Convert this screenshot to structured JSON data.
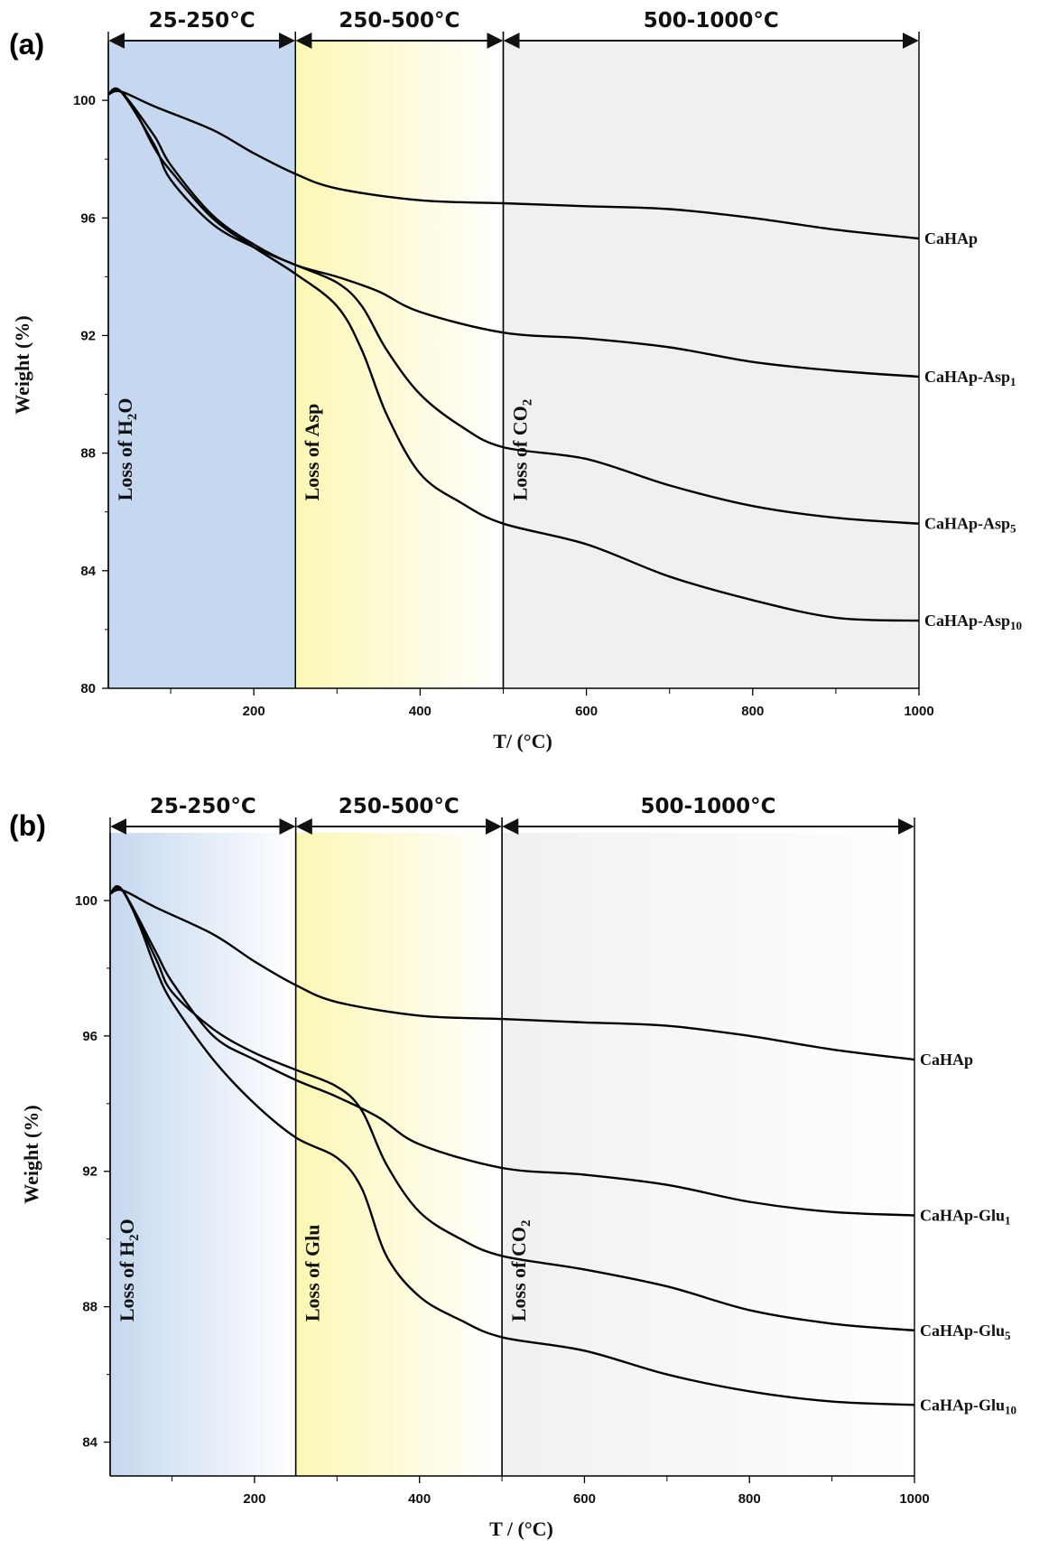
{
  "chart_data": [
    {
      "type": "line",
      "panel_label": "(a)",
      "xlabel": "T/ (°C)",
      "ylabel": "Weight (%)",
      "xlim": [
        25,
        1000
      ],
      "ylim": [
        80,
        102
      ],
      "xticks": [
        200,
        400,
        600,
        800,
        1000
      ],
      "yticks": [
        80,
        84,
        88,
        92,
        96,
        100
      ],
      "ranges": [
        {
          "label": "25-250°C",
          "from": 25,
          "to": 250,
          "color": "#c5d8ef",
          "gradient": false
        },
        {
          "label": "250-500°C",
          "from": 250,
          "to": 500,
          "color": "#fbf7b4",
          "gradient": true
        },
        {
          "label": "500-1000°C",
          "from": 500,
          "to": 1000,
          "color": "#f0f0f0",
          "gradient": false
        }
      ],
      "loss_labels": [
        {
          "base": "Loss of H",
          "sub": "2",
          "tail": "O",
          "x": 25
        },
        {
          "base": "Loss of Asp",
          "sub": "",
          "tail": "",
          "x": 250
        },
        {
          "base": "Loss of CO",
          "sub": "2",
          "tail": "",
          "x": 500
        }
      ],
      "series": [
        {
          "name": "CaHAp",
          "label_base": "CaHAp",
          "label_sub": "",
          "x": [
            25,
            40,
            80,
            150,
            200,
            250,
            300,
            400,
            500,
            600,
            700,
            800,
            900,
            1000
          ],
          "y": [
            100.2,
            100.3,
            99.8,
            99.0,
            98.2,
            97.5,
            97.0,
            96.6,
            96.5,
            96.4,
            96.3,
            96.0,
            95.6,
            95.3
          ]
        },
        {
          "name": "CaHAp-Asp1",
          "label_base": "CaHAp-Asp",
          "label_sub": "1",
          "x": [
            25,
            40,
            80,
            100,
            150,
            200,
            250,
            300,
            350,
            400,
            500,
            600,
            700,
            800,
            900,
            1000
          ],
          "y": [
            100.2,
            100.3,
            98.8,
            97.8,
            96.1,
            95.1,
            94.4,
            94.0,
            93.5,
            92.8,
            92.1,
            91.9,
            91.6,
            91.1,
            90.8,
            90.6
          ]
        },
        {
          "name": "CaHAp-Asp5",
          "label_base": "CaHAp-Asp",
          "label_sub": "5",
          "x": [
            25,
            40,
            80,
            100,
            150,
            200,
            250,
            300,
            330,
            360,
            400,
            450,
            500,
            600,
            700,
            800,
            900,
            1000
          ],
          "y": [
            100.2,
            100.3,
            98.5,
            97.3,
            95.8,
            95.0,
            94.4,
            93.8,
            93.0,
            91.5,
            90.0,
            88.9,
            88.2,
            87.8,
            86.9,
            86.2,
            85.8,
            85.6
          ]
        },
        {
          "name": "CaHAp-Asp10",
          "label_base": "CaHAp-Asp",
          "label_sub": "10",
          "x": [
            25,
            40,
            60,
            80,
            100,
            150,
            200,
            250,
            300,
            330,
            360,
            400,
            450,
            500,
            600,
            700,
            800,
            900,
            1000
          ],
          "y": [
            100.2,
            100.3,
            99.5,
            98.4,
            97.6,
            96.0,
            95.0,
            94.1,
            93.0,
            91.5,
            89.3,
            87.3,
            86.3,
            85.6,
            84.9,
            83.8,
            83.0,
            82.4,
            82.3
          ]
        }
      ]
    },
    {
      "type": "line",
      "panel_label": "(b)",
      "xlabel": "T / (°C)",
      "ylabel": "Weight (%)",
      "xlim": [
        25,
        1000
      ],
      "ylim": [
        83,
        102
      ],
      "xticks": [
        200,
        400,
        600,
        800,
        1000
      ],
      "yticks": [
        84,
        88,
        92,
        96,
        100
      ],
      "ranges": [
        {
          "label": "25-250°C",
          "from": 25,
          "to": 250,
          "color": "#c5d8ef",
          "gradient": true
        },
        {
          "label": "250-500°C",
          "from": 250,
          "to": 500,
          "color": "#fbf7b4",
          "gradient": true
        },
        {
          "label": "500-1000°C",
          "from": 500,
          "to": 1000,
          "color": "#f0f0f0",
          "gradient": true
        }
      ],
      "loss_labels": [
        {
          "base": "Loss of H",
          "sub": "2",
          "tail": "O",
          "x": 25
        },
        {
          "base": "Loss of Glu",
          "sub": "",
          "tail": "",
          "x": 250
        },
        {
          "base": "Loss of CO",
          "sub": "2",
          "tail": "",
          "x": 500
        }
      ],
      "series": [
        {
          "name": "CaHAp",
          "label_base": "CaHAp",
          "label_sub": "",
          "x": [
            25,
            40,
            80,
            150,
            200,
            250,
            300,
            400,
            500,
            600,
            700,
            800,
            900,
            1000
          ],
          "y": [
            100.2,
            100.3,
            99.8,
            99.0,
            98.2,
            97.5,
            97.0,
            96.6,
            96.5,
            96.4,
            96.3,
            96.0,
            95.6,
            95.3
          ]
        },
        {
          "name": "CaHAp-Glu1",
          "label_base": "CaHAp-Glu",
          "label_sub": "1",
          "x": [
            25,
            40,
            80,
            100,
            150,
            200,
            250,
            300,
            350,
            400,
            500,
            600,
            700,
            800,
            900,
            1000
          ],
          "y": [
            100.2,
            100.3,
            98.5,
            97.6,
            96.0,
            95.3,
            94.7,
            94.2,
            93.6,
            92.8,
            92.1,
            91.9,
            91.6,
            91.1,
            90.8,
            90.7
          ]
        },
        {
          "name": "CaHAp-Glu5",
          "label_base": "CaHAp-Glu",
          "label_sub": "5",
          "x": [
            25,
            40,
            80,
            100,
            150,
            200,
            250,
            300,
            330,
            360,
            400,
            450,
            500,
            600,
            700,
            800,
            900,
            1000
          ],
          "y": [
            100.2,
            100.3,
            98.3,
            97.3,
            96.2,
            95.5,
            95.0,
            94.5,
            93.8,
            92.2,
            90.8,
            90.0,
            89.5,
            89.1,
            88.6,
            87.9,
            87.5,
            87.3
          ]
        },
        {
          "name": "CaHAp-Glu10",
          "label_base": "CaHAp-Glu",
          "label_sub": "10",
          "x": [
            25,
            40,
            60,
            80,
            100,
            150,
            200,
            250,
            300,
            330,
            360,
            400,
            450,
            500,
            600,
            700,
            800,
            900,
            1000
          ],
          "y": [
            100.2,
            100.3,
            99.3,
            98.0,
            97.0,
            95.3,
            94.0,
            93.0,
            92.4,
            91.5,
            89.5,
            88.3,
            87.6,
            87.1,
            86.7,
            86.0,
            85.5,
            85.2,
            85.1
          ]
        }
      ]
    }
  ]
}
